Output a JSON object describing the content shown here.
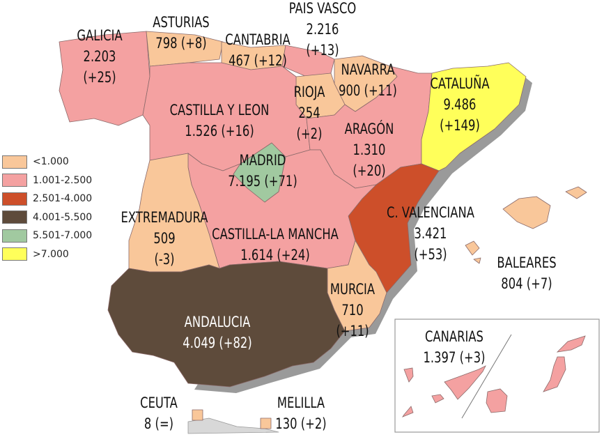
{
  "legend": [
    {
      "label": "<1.000",
      "color": "#f9c79a"
    },
    {
      "label": "1.001-2.500",
      "color": "#f4a1a1"
    },
    {
      "label": "2.501-4.000",
      "color": "#cd4f2a"
    },
    {
      "label": "4.001-5.500",
      "color": "#5e4b3b"
    },
    {
      "label": "5.501-7.000",
      "color": "#a1c9a0"
    },
    {
      "label": ">7.000",
      "color": "#ffff5a"
    }
  ],
  "regions": {
    "galicia": {
      "name": "GALICIA",
      "value": "2.203",
      "change": "(+25)"
    },
    "asturias": {
      "name": "ASTURIAS",
      "value": "798 (+8)"
    },
    "cantabria": {
      "name": "CANTABRIA",
      "value": "467 (+12)"
    },
    "pais_vasco": {
      "name": "PAIS VASCO",
      "value": "2.216",
      "change": "(+13)"
    },
    "navarra": {
      "name": "NAVARRA",
      "value": "900 (+11)"
    },
    "rioja": {
      "name": "RIOJA",
      "value": "254",
      "change": "(+2)"
    },
    "castilla_leon": {
      "name": "CASTILLA Y LEON",
      "value": "1.526 (+16)"
    },
    "aragon": {
      "name": "ARAGÓN",
      "value": "1.310",
      "change": "(+20)"
    },
    "cataluna": {
      "name": "CATALUÑA",
      "value": "9.486",
      "change": "(+149)"
    },
    "madrid": {
      "name": "MADRID",
      "value": "7.195 (+71)"
    },
    "valenciana": {
      "name": "C. VALENCIANA",
      "value": "3.421",
      "change": "(+53)"
    },
    "extremadura": {
      "name": "EXTREMADURA",
      "value": "509",
      "change": "(-3)"
    },
    "castilla_mancha": {
      "name": "CASTILLA-LA MANCHA",
      "value": "1.614 (+24)"
    },
    "baleares": {
      "name": "BALEARES",
      "value": "804 (+7)"
    },
    "murcia": {
      "name": "MURCIA",
      "value": "710",
      "change": "(+11)"
    },
    "andalucia": {
      "name": "ANDALUCIA",
      "value": "4.049 (+82)"
    },
    "canarias": {
      "name": "CANARIAS",
      "value": "1.397 (+3)"
    },
    "ceuta": {
      "name": "CEUTA",
      "value": "8 (=)"
    },
    "melilla": {
      "name": "MELILLA",
      "value": "130 (+2)"
    }
  }
}
